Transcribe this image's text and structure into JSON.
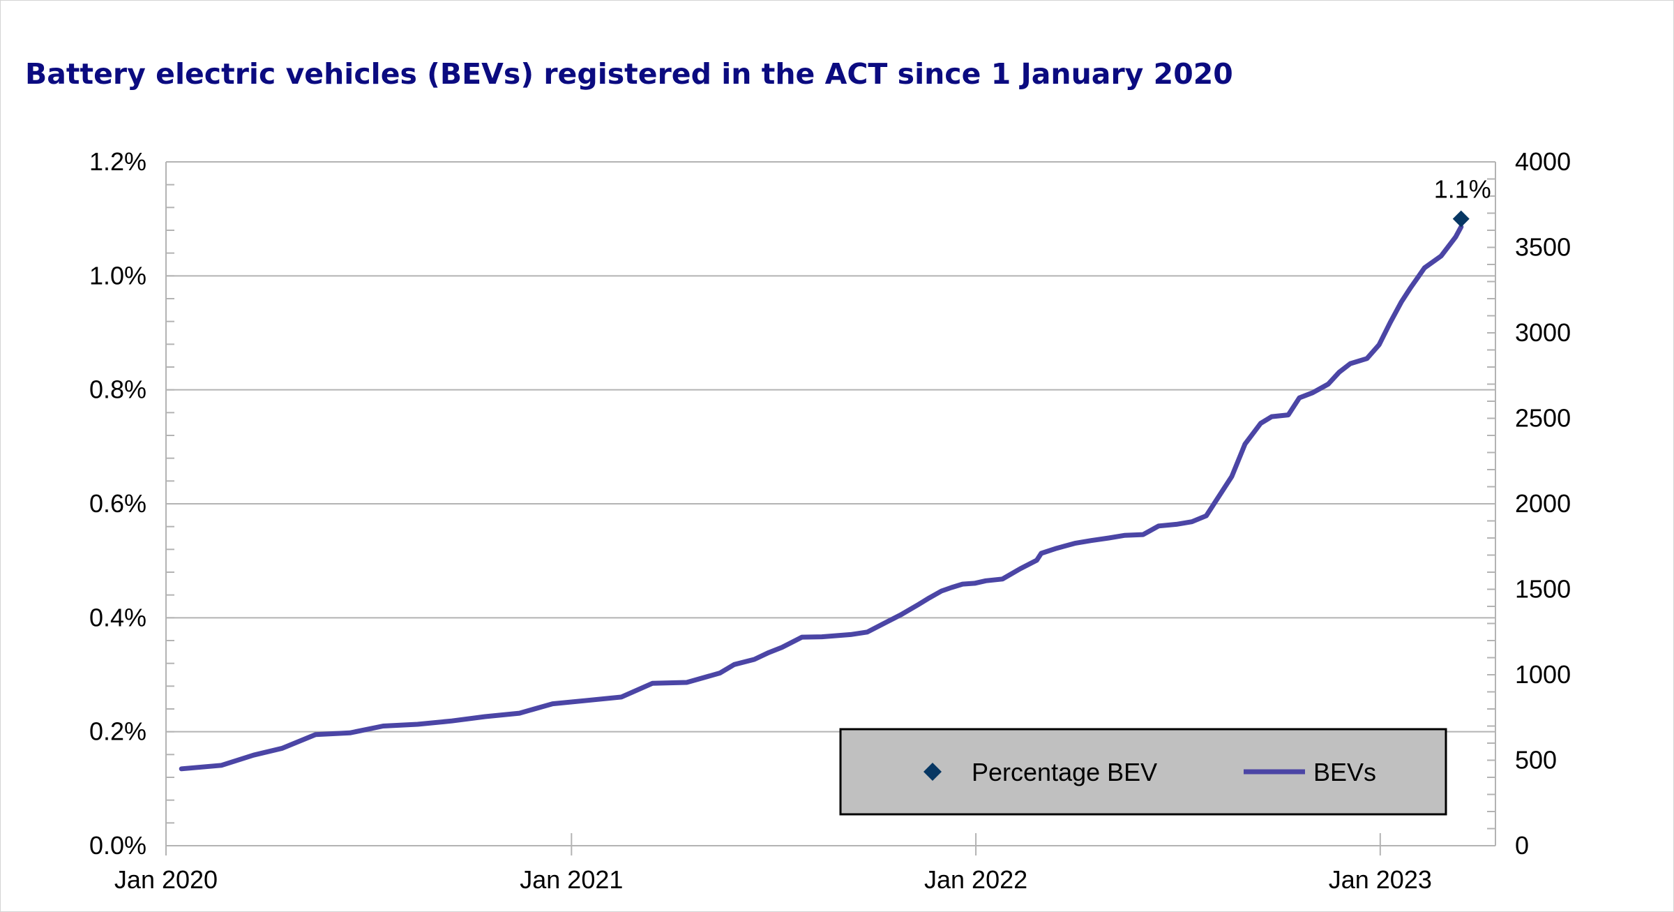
{
  "chart_data": {
    "type": "line",
    "title": "Battery electric vehicles (BEVs) registered in the ACT since 1 January 2020",
    "x_axis": {
      "type": "date",
      "range": [
        "2020-01-01",
        "2023-04-15"
      ],
      "tick_labels": [
        "Jan 2020",
        "Jan 2021",
        "Jan 2022",
        "Jan 2023"
      ],
      "tick_dates": [
        "2020-01-01",
        "2021-01-01",
        "2022-01-01",
        "2023-01-01"
      ]
    },
    "y_axis_left": {
      "range": [
        0,
        1.2
      ],
      "tick_values": [
        0,
        0.2,
        0.4,
        0.6,
        0.8,
        1.0,
        1.2
      ],
      "tick_labels": [
        "0.0%",
        "0.2%",
        "0.4%",
        "0.6%",
        "0.8%",
        "1.0%",
        "1.2%"
      ]
    },
    "y_axis_right": {
      "range": [
        0,
        4000
      ],
      "tick_values": [
        0,
        500,
        1000,
        1500,
        2000,
        2500,
        3000,
        3500,
        4000
      ],
      "tick_labels": [
        "0",
        "500",
        "1000",
        "1500",
        "2000",
        "2500",
        "3000",
        "3500",
        "4000"
      ]
    },
    "grid": "horizontal",
    "legend_position": "bottom-right",
    "series": [
      {
        "name": "BEVs",
        "axis": "right",
        "color": "#4b45a5",
        "points": [
          [
            "2020-01-15",
            450
          ],
          [
            "2020-02-20",
            470
          ],
          [
            "2020-03-20",
            530
          ],
          [
            "2020-04-15",
            570
          ],
          [
            "2020-05-15",
            650
          ],
          [
            "2020-06-15",
            660
          ],
          [
            "2020-07-15",
            700
          ],
          [
            "2020-08-15",
            710
          ],
          [
            "2020-09-15",
            730
          ],
          [
            "2020-10-15",
            755
          ],
          [
            "2020-11-15",
            775
          ],
          [
            "2020-12-15",
            830
          ],
          [
            "2021-01-15",
            850
          ],
          [
            "2021-02-15",
            870
          ],
          [
            "2021-03-15",
            950
          ],
          [
            "2021-04-15",
            955
          ],
          [
            "2021-05-15",
            1010
          ],
          [
            "2021-05-28",
            1060
          ],
          [
            "2021-06-15",
            1090
          ],
          [
            "2021-06-28",
            1130
          ],
          [
            "2021-07-10",
            1160
          ],
          [
            "2021-07-28",
            1220
          ],
          [
            "2021-08-15",
            1222
          ],
          [
            "2021-09-10",
            1235
          ],
          [
            "2021-09-25",
            1250
          ],
          [
            "2021-10-10",
            1300
          ],
          [
            "2021-10-25",
            1350
          ],
          [
            "2021-11-10",
            1410
          ],
          [
            "2021-11-20",
            1450
          ],
          [
            "2021-12-01",
            1490
          ],
          [
            "2021-12-10",
            1510
          ],
          [
            "2021-12-20",
            1530
          ],
          [
            "2021-12-31",
            1535
          ],
          [
            "2022-01-10",
            1550
          ],
          [
            "2022-01-25",
            1560
          ],
          [
            "2022-02-10",
            1620
          ],
          [
            "2022-02-25",
            1670
          ],
          [
            "2022-03-01",
            1710
          ],
          [
            "2022-03-15",
            1740
          ],
          [
            "2022-04-01",
            1770
          ],
          [
            "2022-04-15",
            1785
          ],
          [
            "2022-05-01",
            1800
          ],
          [
            "2022-05-15",
            1815
          ],
          [
            "2022-06-01",
            1820
          ],
          [
            "2022-06-15",
            1870
          ],
          [
            "2022-07-01",
            1880
          ],
          [
            "2022-07-15",
            1895
          ],
          [
            "2022-07-28",
            1930
          ],
          [
            "2022-08-10",
            2060
          ],
          [
            "2022-08-20",
            2160
          ],
          [
            "2022-09-01",
            2350
          ],
          [
            "2022-09-15",
            2470
          ],
          [
            "2022-09-25",
            2510
          ],
          [
            "2022-10-10",
            2520
          ],
          [
            "2022-10-20",
            2620
          ],
          [
            "2022-11-01",
            2650
          ],
          [
            "2022-11-15",
            2700
          ],
          [
            "2022-11-25",
            2770
          ],
          [
            "2022-12-05",
            2820
          ],
          [
            "2022-12-20",
            2850
          ],
          [
            "2022-12-31",
            2930
          ],
          [
            "2023-01-10",
            3060
          ],
          [
            "2023-01-20",
            3180
          ],
          [
            "2023-01-28",
            3260
          ],
          [
            "2023-02-10",
            3380
          ],
          [
            "2023-02-25",
            3450
          ],
          [
            "2023-03-10",
            3560
          ],
          [
            "2023-03-15",
            3620
          ]
        ]
      },
      {
        "name": "Percentage BEV",
        "axis": "left",
        "color": "#073763",
        "marker": "diamond",
        "points": [
          [
            "2023-03-15",
            1.1
          ]
        ],
        "data_label": "1.1%"
      }
    ]
  }
}
